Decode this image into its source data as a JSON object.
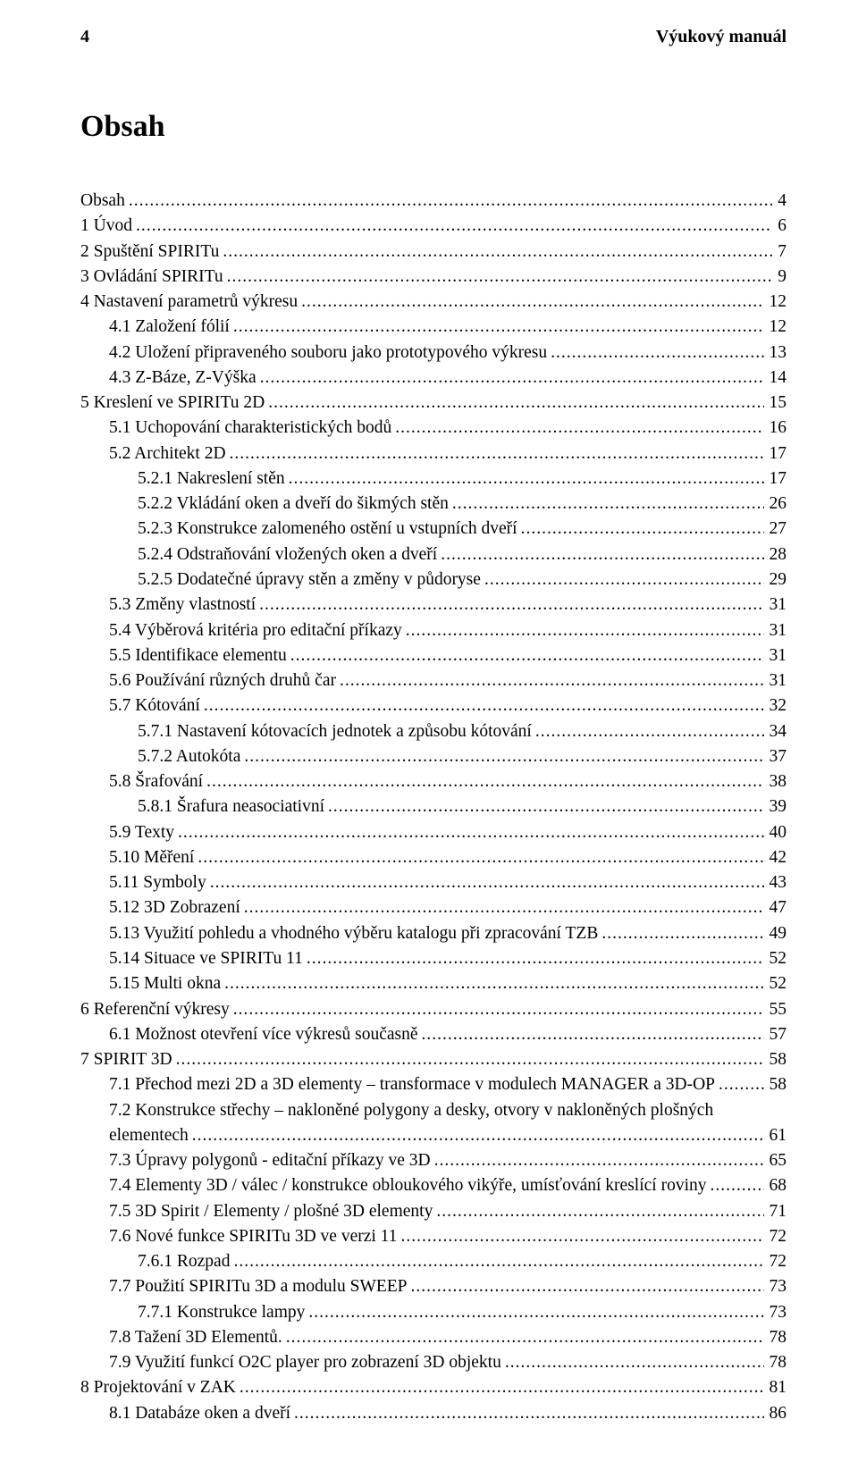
{
  "header": {
    "page_number": "4",
    "doc_title": "Výukový manuál"
  },
  "title": "Obsah",
  "entries": [
    {
      "level": 1,
      "text": "Obsah",
      "page": "4"
    },
    {
      "level": 1,
      "text": "1 Úvod",
      "page": "6"
    },
    {
      "level": 1,
      "text": "2 Spuštění SPIRITu",
      "page": "7"
    },
    {
      "level": 1,
      "text": "3 Ovládání SPIRITu",
      "page": "9"
    },
    {
      "level": 1,
      "text": "4 Nastavení parametrů výkresu",
      "page": "12"
    },
    {
      "level": 2,
      "text": "4.1   Založení fólií",
      "page": "12"
    },
    {
      "level": 2,
      "text": "4.2   Uložení připraveného souboru jako prototypového výkresu",
      "page": "13"
    },
    {
      "level": 2,
      "text": "4.3   Z-Báze, Z-Výška",
      "page": "14"
    },
    {
      "level": 1,
      "text": "5 Kreslení ve SPIRITu 2D",
      "page": "15"
    },
    {
      "level": 2,
      "text": "5.1   Uchopování charakteristických bodů",
      "page": "16"
    },
    {
      "level": 2,
      "text": "5.2   Architekt 2D",
      "page": "17"
    },
    {
      "level": 3,
      "text": "5.2.1    Nakreslení stěn",
      "page": "17"
    },
    {
      "level": 3,
      "text": "5.2.2    Vkládání oken a dveří do šikmých stěn",
      "page": "26"
    },
    {
      "level": 3,
      "text": "5.2.3    Konstrukce zalomeného ostění u vstupních dveří",
      "page": "27"
    },
    {
      "level": 3,
      "text": "5.2.4    Odstraňování vložených oken a dveří",
      "page": "28"
    },
    {
      "level": 3,
      "text": "5.2.5    Dodatečné úpravy stěn a změny v půdoryse",
      "page": "29"
    },
    {
      "level": 2,
      "text": "5.3   Změny vlastností",
      "page": "31"
    },
    {
      "level": 2,
      "text": "5.4   Výběrová kritéria pro editační příkazy",
      "page": "31"
    },
    {
      "level": 2,
      "text": "5.5   Identifikace elementu",
      "page": "31"
    },
    {
      "level": 2,
      "text": "5.6   Používání různých druhů čar",
      "page": "31"
    },
    {
      "level": 2,
      "text": "5.7   Kótování",
      "page": "32"
    },
    {
      "level": 3,
      "text": "5.7.1    Nastavení kótovacích jednotek a způsobu kótování",
      "page": "34"
    },
    {
      "level": 3,
      "text": "5.7.2    Autokóta",
      "page": "37"
    },
    {
      "level": 2,
      "text": "5.8   Šrafování",
      "page": "38"
    },
    {
      "level": 3,
      "text": "5.8.1    Šrafura neasociativní",
      "page": "39"
    },
    {
      "level": 2,
      "text": "5.9   Texty",
      "page": "40"
    },
    {
      "level": 2,
      "text": "5.10    Měření",
      "page": "42"
    },
    {
      "level": 2,
      "text": "5.11    Symboly",
      "page": "43"
    },
    {
      "level": 2,
      "text": "5.12    3D Zobrazení",
      "page": "47"
    },
    {
      "level": 2,
      "text": "5.13    Využití pohledu a vhodného výběru katalogu při zpracování TZB",
      "page": "49"
    },
    {
      "level": 2,
      "text": "5.14    Situace ve SPIRITu 11",
      "page": "52"
    },
    {
      "level": 2,
      "text": "5.15    Multi okna",
      "page": "52"
    },
    {
      "level": 1,
      "text": "6 Referenční výkresy",
      "page": "55"
    },
    {
      "level": 2,
      "text": "6.1   Možnost otevření více výkresů současně",
      "page": "57"
    },
    {
      "level": 1,
      "text": "7 SPIRIT 3D",
      "page": "58"
    },
    {
      "level": 2,
      "text": "7.1   Přechod mezi 2D a 3D elementy – transformace v modulech MANAGER a 3D-OP",
      "page": "58"
    },
    {
      "level": 2,
      "text": "7.2   Konstrukce střechy – nakloněné polygony a desky, otvory v nakloněných plošných elementech",
      "page": "61"
    },
    {
      "level": 2,
      "text": "7.3   Úpravy polygonů - editační příkazy ve 3D",
      "page": "65"
    },
    {
      "level": 2,
      "text": "7.4   Elementy 3D / válec / konstrukce obloukového vikýře, umísťování kreslící roviny",
      "page": "68"
    },
    {
      "level": 2,
      "text": "7.5   3D Spirit / Elementy / plošné 3D elementy",
      "page": "71"
    },
    {
      "level": 2,
      "text": "7.6   Nové funkce SPIRITu 3D ve verzi 11",
      "page": "72"
    },
    {
      "level": 3,
      "text": "7.6.1    Rozpad",
      "page": "72"
    },
    {
      "level": 2,
      "text": "7.7   Použití SPIRITu 3D a modulu SWEEP",
      "page": "73"
    },
    {
      "level": 3,
      "text": "7.7.1    Konstrukce lampy",
      "page": "73"
    },
    {
      "level": 2,
      "text": "7.8   Tažení 3D Elementů.",
      "page": "78"
    },
    {
      "level": 2,
      "text": "7.9   Využití funkcí O2C player pro zobrazení 3D objektu",
      "page": "78"
    },
    {
      "level": 1,
      "text": "8 Projektování v ZAK",
      "page": "81"
    },
    {
      "level": 2,
      "text": "8.1   Databáze oken a dveří",
      "page": "86"
    }
  ],
  "wrap_index": 36
}
